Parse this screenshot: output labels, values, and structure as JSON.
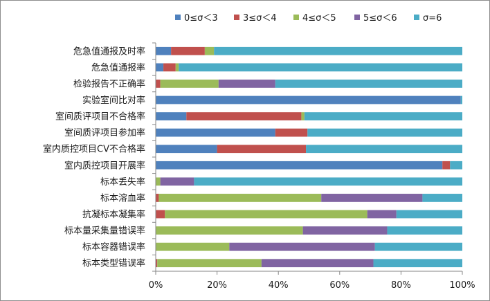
{
  "chart_data": {
    "type": "bar",
    "orientation": "horizontal",
    "stacked": "percent",
    "categories": [
      "危急值通报及时率",
      "危急值通报率",
      "检验报告不正确率",
      "实验室间比对率",
      "室间质评项目不合格率",
      "室间质评项目参加率",
      "室内质控项目CV不合格率",
      "室内质控项目开展率",
      "标本丢失率",
      "标本溶血率",
      "抗凝标本凝集率",
      "标本量采集量错误率",
      "标本容器错误率",
      "标本类型错误率"
    ],
    "series": [
      {
        "name": "0≤σ＜3",
        "color": "#4f81bd",
        "values": [
          5,
          2.5,
          0,
          99.5,
          10,
          39,
          20,
          93.5,
          0,
          0,
          0,
          0,
          0,
          0
        ]
      },
      {
        "name": "3≤σ＜4",
        "color": "#c0504d",
        "values": [
          11,
          4,
          1.5,
          0,
          37.5,
          10.5,
          29,
          2.5,
          0,
          1,
          3,
          0,
          0,
          0.5
        ]
      },
      {
        "name": "4≤σ＜5",
        "color": "#9bbb59",
        "values": [
          3,
          1,
          19,
          0,
          1,
          0,
          0,
          0,
          1.5,
          53,
          66,
          48,
          24,
          34
        ]
      },
      {
        "name": "5≤σ＜6",
        "color": "#8064a2",
        "values": [
          0,
          0,
          18.5,
          0,
          0,
          0,
          0,
          0,
          11,
          33,
          9.5,
          27.5,
          47.5,
          36.5
        ]
      },
      {
        "name": "σ=6",
        "color": "#4bacc6",
        "values": [
          81,
          92.5,
          61,
          0.5,
          51.5,
          50.5,
          51,
          4,
          87.5,
          13,
          21.5,
          24.5,
          28.5,
          29
        ]
      }
    ],
    "x_ticks": [
      "0%",
      "20%",
      "40%",
      "60%",
      "80%",
      "100%"
    ],
    "xlim": [
      0,
      100
    ],
    "grid": false,
    "legend_position": "top"
  }
}
